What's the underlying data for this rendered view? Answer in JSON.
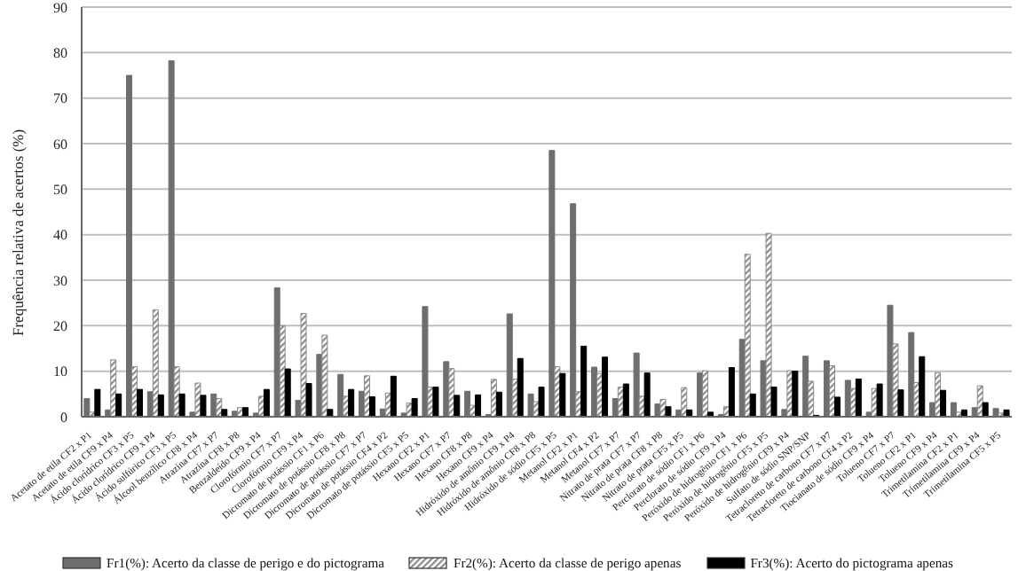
{
  "chart_data": {
    "type": "bar",
    "ylabel": "Frequência relativa de acertos (%)",
    "categories": [
      "Acetato de etila CF2 x P1",
      "Acetato de etila CF9 x P4",
      "Ácido clorídrico CF3 x P5",
      "Ácido clorídrico CF9 x P4",
      "Ácido sulfúrico CF3 x P5",
      "Álcool benzílico CF8 x P4",
      "Atrazina CF7 x P7",
      "Atrazina CF8 x P8",
      "Benzaldeído CF9 x P4",
      "Clorofórmio CF7 x P7",
      "Clorofórmio CF9 x P4",
      "Dicromato de potássio CF1 x P6",
      "Dicromato de potássio CF8 x P8",
      "Dicromato de potássio CF7 x P7",
      "Dicromato de potássio CF4 x P2",
      "Dicromato de potássio CF5 x P5",
      "Hexano CF2 x P1",
      "Hexano CF7 x P7",
      "Hexano CF8 x P8",
      "Hexano CF9 x P4",
      "Hidróxido de amônio CF9 x P4",
      "Hidróxido de amônio CF8 x P8",
      "Hidróxido de sódio CF5 x P5",
      "Metanol CF2 x P1",
      "Metanol CF4 x P2",
      "Metanol CF7 x P7",
      "Nitrato de prata CF7 x P7",
      "Nitrato de prata CF8 x P8",
      "Nitrato de prata CF5 x P5",
      "Perclorato de sódio CF1 x P6",
      "Perclorato de sódio CF9 x P4",
      "Peróxido de hidrogênio CF1 x P6",
      "Peróxido de hidrogênio CF5 x P5",
      "Peróxido de hidrogênio CF9 x P4",
      "Sulfato de sódio SNP/SNP",
      "Tetracloreto de carbono CF7 x P7",
      "Tetracloreto de carbono CF4 x P2",
      "Tiocianato de sódio CF9 x P4",
      "Tolueno CF7 x P7",
      "Tolueno CF2 x P1",
      "Tolueno CF9 x P4",
      "Trimetilamina CF2 x P1",
      "Trimetilamina CF9 x P4",
      "Trimetilamina CF5 x P5"
    ],
    "series": [
      {
        "name": "Fr1(%): Acerto da classe de perigo e do pictograma",
        "color": "#6e6e6e",
        "values": [
          4,
          1.5,
          75,
          5.5,
          78.2,
          1,
          5,
          1.2,
          0.8,
          28.3,
          3.6,
          13.7,
          9.3,
          5.6,
          1.7,
          0.8,
          24.2,
          12.1,
          5.6,
          0.5,
          22.6,
          5,
          58.5,
          46.8,
          10.9,
          4,
          14,
          2.8,
          1.5,
          9.6,
          0.5,
          17,
          12.3,
          1.6,
          13.3,
          12.3,
          8,
          1,
          24.5,
          18.5,
          3.1,
          3.1,
          2,
          1.8
        ]
      },
      {
        "name": "Fr2(%): Acerto da classe de perigo apenas",
        "color": "#8a8a8a",
        "values": [
          1,
          12.5,
          11,
          23.5,
          11,
          7.4,
          4,
          2,
          4.5,
          20,
          22.7,
          17.9,
          4.5,
          9,
          5.2,
          3,
          6.5,
          10.6,
          2.5,
          8.2,
          8.3,
          3.3,
          11,
          5.5,
          9.5,
          6.5,
          4.5,
          3.8,
          6.4,
          10.1,
          2.2,
          35.7,
          40.3,
          10.1,
          7.8,
          11.2,
          6.2,
          6.2,
          16,
          7.5,
          9.7,
          1,
          6.8,
          0.8
        ]
      },
      {
        "name": "Fr3(%): Acerto do pictograma apenas",
        "color": "#000000",
        "values": [
          6,
          5,
          6,
          4.8,
          5,
          4.7,
          1.6,
          2,
          6,
          10.5,
          7.3,
          1.6,
          6,
          4.4,
          8.9,
          4,
          6.5,
          4.7,
          4.8,
          5.4,
          12.8,
          6.5,
          9.5,
          15.5,
          13.1,
          7.2,
          9.6,
          2.2,
          1.5,
          1,
          10.8,
          5,
          6.5,
          10,
          0.3,
          4.3,
          8.3,
          7.2,
          5.9,
          13.2,
          5.8,
          1.5,
          3.1,
          1.5
        ]
      }
    ],
    "ylim": [
      0,
      90
    ],
    "yticks": [
      0,
      10,
      20,
      30,
      40,
      50,
      60,
      70,
      80,
      90
    ],
    "grid": "y",
    "legend": "bottom"
  }
}
